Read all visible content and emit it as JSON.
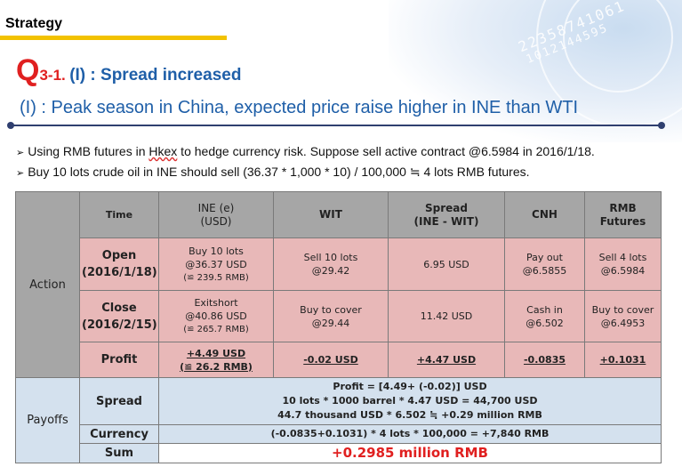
{
  "header": {
    "section_label": "Strategy",
    "q_letter": "Q",
    "q_number": "3-1.",
    "q_title": "(I) : Spread increased",
    "subtitle": "(I) : Peak season in China, expected price raise higher in INE than WTI"
  },
  "decoration": {
    "digits_line1": "22358741061",
    "digits_line2": "1012144595"
  },
  "bullets": {
    "line1_before": "Using RMB futures in ",
    "line1_link": "Hkex",
    "line1_after": " to hedge currency risk. Suppose sell active contract @6.5984 in 2016/1/18.",
    "line2": "Buy 10 lots crude oil in INE should sell (36.37 * 1,000 * 10) / 100,000 ≒ 4 lots RMB futures."
  },
  "table": {
    "headers": {
      "time": "Time",
      "ine": "INE (e)\n(USD)",
      "wit": "WIT",
      "spread": "Spread\n(INE - WIT)",
      "cnh": "CNH",
      "rmb": "RMB Futures"
    },
    "action_label": "Action",
    "open": {
      "label": "Open\n(2016/1/18)",
      "ine_l1": "Buy 10 lots",
      "ine_l2": "@36.37 USD",
      "ine_l3": "(≌ 239.5 RMB)",
      "wit": "Sell 10 lots\n@29.42",
      "spread": "6.95 USD",
      "cnh": "Pay out\n@6.5855",
      "rmb": "Sell 4 lots\n@6.5984"
    },
    "close": {
      "label": "Close\n(2016/2/15)",
      "ine_l1": "Exitshort",
      "ine_l2": "@40.86 USD",
      "ine_l3": "(≌ 265.7 RMB)",
      "wit": "Buy to cover\n@29.44",
      "spread": "11.42 USD",
      "cnh": "Cash in\n@6.502",
      "rmb": "Buy to cover\n@6.4953"
    },
    "profit": {
      "label": "Profit",
      "ine_l1": "+4.49 USD",
      "ine_l2": "(≌ 26.2 RMB)",
      "wit": "-0.02 USD",
      "spread": "+4.47 USD",
      "cnh": "-0.0835",
      "rmb": "+0.1031"
    },
    "payoffs_label": "Payoffs",
    "spread_row": {
      "label": "Spread",
      "line1": "Profit = [4.49+ (-0.02)] USD",
      "line2": "10 lots * 1000 barrel * 4.47 USD = 44,700 USD",
      "line3": "44.7 thousand USD * 6.502 ≒ +0.29 million RMB"
    },
    "currency_row": {
      "label": "Currency",
      "text": "(-0.0835+0.1031) * 4 lots * 100,000 = +7,840 RMB"
    },
    "sum_row": {
      "label": "Sum",
      "text": "+0.2985 million RMB"
    }
  },
  "colors": {
    "accent_blue": "#1f5fa8",
    "accent_red": "#e02020",
    "yellow_bar": "#f2c200",
    "pink": "#e8b8b8",
    "light_blue": "#d4e1ee",
    "gray": "#a6a6a6"
  }
}
